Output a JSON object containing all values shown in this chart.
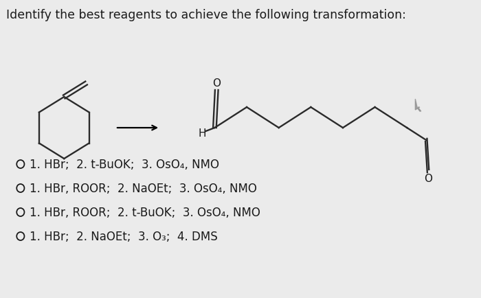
{
  "title": "Identify the best reagents to achieve the following transformation:",
  "title_fontsize": 12.5,
  "options": [
    "1. HBr;  2. t-BuOK;  3. OsO₄, NMO",
    "1. HBr, ROOR;  2. NaOEt;  3. OsO₄, NMO",
    "1. HBr, ROOR;  2. t-BuOK;  3. OsO₄, NMO",
    "1. HBr;  2. NaOEt;  3. O₃;  4. DMS"
  ],
  "option_fontsize": 12.0,
  "bg_color": "#ebebeb",
  "text_color": "#1a1a1a",
  "ring_color": "#2a2a2a",
  "chain_color": "#2a2a2a"
}
